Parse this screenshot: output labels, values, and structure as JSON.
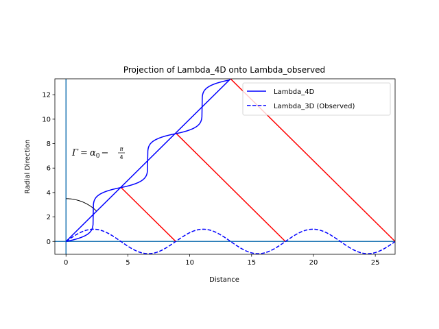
{
  "chart_data": {
    "type": "line",
    "title": "Projection of Lambda_4D onto Lambda_observed",
    "xlabel": "Distance",
    "ylabel": "Radial Direction",
    "xlim": [
      -0.9,
      26.6
    ],
    "ylim": [
      -1.05,
      13.3
    ],
    "xticks": [
      0,
      5,
      10,
      15,
      20,
      25
    ],
    "xtick_labels": [
      "0",
      "5",
      "10",
      "15",
      "20",
      "25"
    ],
    "yticks": [
      0,
      2,
      4,
      6,
      8,
      10,
      12
    ],
    "ytick_labels": [
      "0",
      "2",
      "4",
      "6",
      "8",
      "10",
      "12"
    ],
    "grid": false,
    "legend": {
      "position": "top-right",
      "entries": [
        {
          "label": "Lambda_4D",
          "color": "#0000ff",
          "dash": "solid"
        },
        {
          "label": "Lambda_3D (Observed)",
          "color": "#0000ff",
          "dash": "dashed"
        }
      ]
    },
    "annotation": {
      "text": "Γ = α₀ − π/4",
      "parts": {
        "gamma": "Γ",
        "eq": "=",
        "alpha": "α",
        "sub": "0",
        "minus": "−",
        "num": "π",
        "den": "4"
      },
      "x": 0.4,
      "y": 7.0
    },
    "colors": {
      "lambda": "#0000ff",
      "projection": "#ff0000",
      "axes_lines": "#1f77b4",
      "arc": "#000000"
    },
    "lambda_4d_staircase": {
      "step_size": 4.4,
      "steps": 3,
      "amplitude": 2.2
    },
    "lambda_3d": {
      "amplitude": 1.0,
      "period": 8.87,
      "x_range": [
        0,
        26.6
      ]
    },
    "diagonal": {
      "x": [
        0,
        13.3
      ],
      "y": [
        0,
        13.3
      ]
    },
    "projection_lines": [
      {
        "x": [
          4.43,
          8.87
        ],
        "y": [
          4.43,
          0
        ]
      },
      {
        "x": [
          8.87,
          17.73
        ],
        "y": [
          8.87,
          0
        ]
      },
      {
        "x": [
          13.3,
          26.6
        ],
        "y": [
          13.3,
          0
        ]
      }
    ],
    "arc": {
      "center": [
        0,
        0
      ],
      "radius": 3.5,
      "angle_deg": [
        45,
        90
      ]
    },
    "reference_lines": {
      "vertical_x": 0,
      "horizontal_y": 0
    }
  }
}
